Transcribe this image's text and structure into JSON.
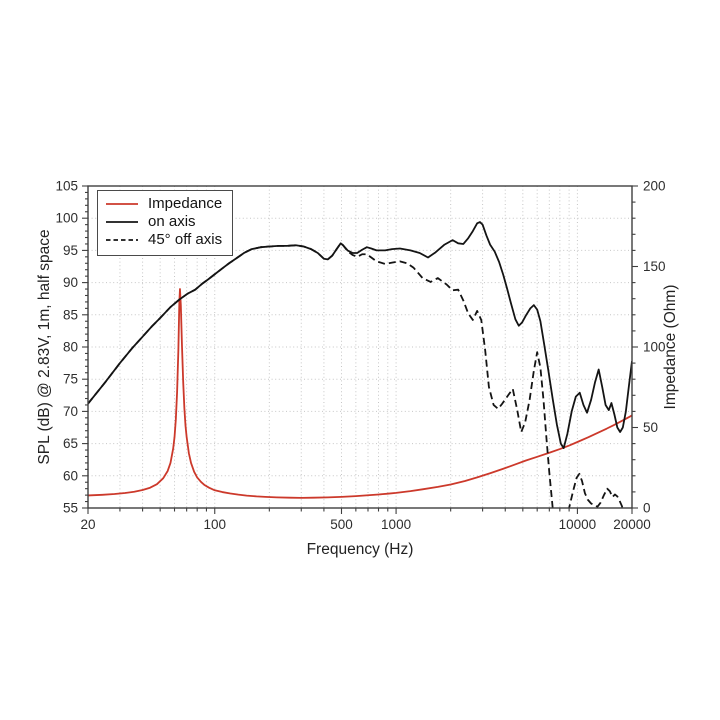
{
  "chart_data": {
    "type": "line",
    "title": "",
    "xlabel": "Frequency (Hz)",
    "ylabel_left": "SPL (dB) @ 2.83V, 1m, half space",
    "ylabel_right": "Impedance (Ohm)",
    "x_scale": "log",
    "x_range": [
      20,
      20000
    ],
    "y_left_range": [
      55,
      105
    ],
    "y_right_range": [
      0,
      200
    ],
    "x_ticks_labeled": [
      20,
      100,
      500,
      1000,
      10000,
      20000
    ],
    "x_tick_label_texts": [
      "20",
      "100",
      "500",
      "1000",
      "10000",
      "20000"
    ],
    "x_grid": [
      30,
      40,
      50,
      60,
      70,
      80,
      90,
      100,
      200,
      300,
      400,
      500,
      600,
      700,
      800,
      900,
      1000,
      2000,
      3000,
      4000,
      5000,
      6000,
      7000,
      8000,
      9000,
      10000
    ],
    "y_left_ticks_major": [
      55,
      60,
      65,
      70,
      75,
      80,
      85,
      90,
      95,
      100,
      105
    ],
    "y_left_grid": [
      60,
      65,
      70,
      75,
      80,
      85,
      90,
      95,
      100
    ],
    "y_right_ticks_major": [
      0,
      50,
      100,
      150,
      200
    ],
    "y_right_minor_step": 10,
    "y_left_minor_step": 1,
    "grid": "dotted",
    "grid_color": "#c6c6c6",
    "frame_color": "#3f3f3f",
    "text_color": "#2e2e2e",
    "legend_position": "upper-left",
    "legend": [
      {
        "label": "Impedance",
        "color": "#cc392b",
        "style": "solid"
      },
      {
        "label": "on axis",
        "color": "#141414",
        "style": "solid"
      },
      {
        "label": "45° off axis",
        "color": "#141414",
        "style": "dashed"
      }
    ],
    "series": [
      {
        "name": "Impedance",
        "axis": "right",
        "unit": "Ohm",
        "color": "#cc392b",
        "style": "solid",
        "data_name": "impedance-curve",
        "points": [
          [
            20,
            7.8
          ],
          [
            24,
            8.2
          ],
          [
            28,
            8.7
          ],
          [
            32,
            9.3
          ],
          [
            36,
            10.1
          ],
          [
            40,
            11.2
          ],
          [
            44,
            12.6
          ],
          [
            48,
            14.8
          ],
          [
            52,
            18.5
          ],
          [
            55,
            23
          ],
          [
            57,
            28
          ],
          [
            59,
            37
          ],
          [
            60,
            44
          ],
          [
            61,
            55
          ],
          [
            62,
            72
          ],
          [
            63,
            98
          ],
          [
            63.8,
            128
          ],
          [
            64.3,
            136
          ],
          [
            65,
            126
          ],
          [
            66,
            100
          ],
          [
            67,
            78
          ],
          [
            68,
            62
          ],
          [
            69,
            51
          ],
          [
            70,
            44
          ],
          [
            72,
            34
          ],
          [
            74,
            28
          ],
          [
            77,
            22.5
          ],
          [
            80,
            19
          ],
          [
            84,
            16.2
          ],
          [
            88,
            14.2
          ],
          [
            93,
            12.6
          ],
          [
            100,
            11.0
          ],
          [
            110,
            9.9
          ],
          [
            122,
            9.0
          ],
          [
            135,
            8.3
          ],
          [
            150,
            7.7
          ],
          [
            170,
            7.2
          ],
          [
            190,
            6.9
          ],
          [
            220,
            6.6
          ],
          [
            260,
            6.4
          ],
          [
            300,
            6.3
          ],
          [
            350,
            6.4
          ],
          [
            420,
            6.6
          ],
          [
            500,
            6.9
          ],
          [
            600,
            7.4
          ],
          [
            700,
            7.9
          ],
          [
            800,
            8.4
          ],
          [
            900,
            8.9
          ],
          [
            1000,
            9.4
          ],
          [
            1200,
            10.5
          ],
          [
            1400,
            11.6
          ],
          [
            1700,
            13.1
          ],
          [
            2000,
            14.6
          ],
          [
            2400,
            16.8
          ],
          [
            2800,
            19.0
          ],
          [
            3300,
            21.6
          ],
          [
            3900,
            24.4
          ],
          [
            4500,
            26.9
          ],
          [
            5200,
            29.5
          ],
          [
            6000,
            31.8
          ],
          [
            7000,
            34.3
          ],
          [
            8000,
            36.6
          ],
          [
            9000,
            38.8
          ],
          [
            10000,
            41.0
          ],
          [
            11500,
            44.0
          ],
          [
            13000,
            46.8
          ],
          [
            14500,
            49.3
          ],
          [
            16000,
            51.7
          ],
          [
            18000,
            54.7
          ],
          [
            20000,
            57.5
          ]
        ]
      },
      {
        "name": "45° off axis",
        "axis": "left",
        "unit": "dB",
        "color": "#141414",
        "style": "dashed",
        "data_name": "off-axis-curve",
        "points": [
          [
            20,
            71.2
          ],
          [
            25,
            74.6
          ],
          [
            30,
            77.5
          ],
          [
            35,
            79.8
          ],
          [
            40,
            81.6
          ],
          [
            45,
            83.2
          ],
          [
            50,
            84.5
          ],
          [
            57,
            86.2
          ],
          [
            64,
            87.4
          ],
          [
            71,
            88.3
          ],
          [
            78,
            88.9
          ],
          [
            85,
            89.8
          ],
          [
            92,
            90.5
          ],
          [
            100,
            91.3
          ],
          [
            110,
            92.2
          ],
          [
            120,
            93.0
          ],
          [
            132,
            93.8
          ],
          [
            145,
            94.6
          ],
          [
            160,
            95.2
          ],
          [
            180,
            95.5
          ],
          [
            200,
            95.6
          ],
          [
            225,
            95.7
          ],
          [
            250,
            95.7
          ],
          [
            280,
            95.8
          ],
          [
            310,
            95.6
          ],
          [
            340,
            95.2
          ],
          [
            370,
            94.6
          ],
          [
            400,
            93.7
          ],
          [
            420,
            93.6
          ],
          [
            445,
            94.2
          ],
          [
            470,
            95.2
          ],
          [
            495,
            96.1
          ],
          [
            510,
            95.8
          ],
          [
            540,
            94.9
          ],
          [
            575,
            94.3
          ],
          [
            610,
            94.0
          ],
          [
            650,
            94.4
          ],
          [
            690,
            94.4
          ],
          [
            730,
            93.9
          ],
          [
            780,
            93.3
          ],
          [
            870,
            92.9
          ],
          [
            950,
            93.1
          ],
          [
            1050,
            93.3
          ],
          [
            1150,
            93.0
          ],
          [
            1250,
            92.3
          ],
          [
            1400,
            90.7
          ],
          [
            1550,
            90.1
          ],
          [
            1700,
            90.7
          ],
          [
            1900,
            89.7
          ],
          [
            2050,
            88.8
          ],
          [
            2200,
            88.9
          ],
          [
            2350,
            87.2
          ],
          [
            2500,
            85.2
          ],
          [
            2650,
            84.2
          ],
          [
            2800,
            85.6
          ],
          [
            2950,
            84.2
          ],
          [
            3100,
            79.5
          ],
          [
            3250,
            73.8
          ],
          [
            3450,
            71.0
          ],
          [
            3650,
            70.4
          ],
          [
            3850,
            71.2
          ],
          [
            4100,
            72.3
          ],
          [
            4400,
            73.5
          ],
          [
            4650,
            70.3
          ],
          [
            4900,
            66.8
          ],
          [
            5150,
            68.3
          ],
          [
            5450,
            71.8
          ],
          [
            5750,
            76.3
          ],
          [
            6000,
            79.2
          ],
          [
            6250,
            76.8
          ],
          [
            6500,
            71.8
          ],
          [
            6750,
            65.8
          ],
          [
            7000,
            60.5
          ],
          [
            7250,
            56.0
          ],
          [
            7500,
            51.5
          ],
          [
            7900,
            46.0
          ],
          [
            8300,
            49.0
          ],
          [
            8700,
            53.2
          ],
          [
            9100,
            55.6
          ],
          [
            9500,
            57.8
          ],
          [
            9900,
            59.7
          ],
          [
            10250,
            60.3
          ],
          [
            10600,
            59.2
          ],
          [
            11000,
            57.3
          ],
          [
            11400,
            56.3
          ],
          [
            11900,
            55.7
          ],
          [
            12400,
            55.4
          ],
          [
            12900,
            55.2
          ],
          [
            13400,
            55.8
          ],
          [
            14000,
            57.0
          ],
          [
            14600,
            58.0
          ],
          [
            15100,
            57.6
          ],
          [
            15600,
            56.7
          ],
          [
            16100,
            57.1
          ],
          [
            16600,
            56.8
          ],
          [
            17100,
            56.1
          ],
          [
            17600,
            55.3
          ],
          [
            18000,
            54.2
          ],
          [
            18400,
            52.5
          ]
        ]
      },
      {
        "name": "on axis",
        "axis": "left",
        "unit": "dB",
        "color": "#141414",
        "style": "solid",
        "data_name": "on-axis-curve",
        "points": [
          [
            20,
            71.2
          ],
          [
            25,
            74.6
          ],
          [
            30,
            77.5
          ],
          [
            35,
            79.8
          ],
          [
            40,
            81.6
          ],
          [
            45,
            83.2
          ],
          [
            50,
            84.5
          ],
          [
            57,
            86.2
          ],
          [
            64,
            87.4
          ],
          [
            71,
            88.3
          ],
          [
            78,
            88.9
          ],
          [
            85,
            89.8
          ],
          [
            92,
            90.5
          ],
          [
            100,
            91.3
          ],
          [
            110,
            92.2
          ],
          [
            120,
            93.0
          ],
          [
            132,
            93.8
          ],
          [
            145,
            94.6
          ],
          [
            160,
            95.2
          ],
          [
            180,
            95.5
          ],
          [
            200,
            95.6
          ],
          [
            225,
            95.7
          ],
          [
            250,
            95.7
          ],
          [
            280,
            95.8
          ],
          [
            310,
            95.6
          ],
          [
            340,
            95.2
          ],
          [
            370,
            94.6
          ],
          [
            400,
            93.7
          ],
          [
            420,
            93.6
          ],
          [
            445,
            94.2
          ],
          [
            470,
            95.2
          ],
          [
            495,
            96.1
          ],
          [
            510,
            95.8
          ],
          [
            540,
            95.0
          ],
          [
            575,
            94.6
          ],
          [
            610,
            94.6
          ],
          [
            650,
            95.1
          ],
          [
            690,
            95.5
          ],
          [
            730,
            95.3
          ],
          [
            780,
            95.0
          ],
          [
            870,
            95.0
          ],
          [
            950,
            95.2
          ],
          [
            1050,
            95.3
          ],
          [
            1200,
            95.0
          ],
          [
            1350,
            94.6
          ],
          [
            1500,
            93.9
          ],
          [
            1650,
            94.7
          ],
          [
            1850,
            95.9
          ],
          [
            2050,
            96.6
          ],
          [
            2200,
            96.1
          ],
          [
            2350,
            96.0
          ],
          [
            2500,
            96.9
          ],
          [
            2650,
            98.0
          ],
          [
            2800,
            99.2
          ],
          [
            2900,
            99.4
          ],
          [
            3000,
            99.0
          ],
          [
            3150,
            97.3
          ],
          [
            3300,
            95.9
          ],
          [
            3500,
            94.8
          ],
          [
            3700,
            93.2
          ],
          [
            3900,
            91.2
          ],
          [
            4100,
            89.0
          ],
          [
            4300,
            86.8
          ],
          [
            4550,
            84.3
          ],
          [
            4750,
            83.3
          ],
          [
            4950,
            83.8
          ],
          [
            5200,
            84.9
          ],
          [
            5500,
            86.0
          ],
          [
            5750,
            86.5
          ],
          [
            6000,
            85.8
          ],
          [
            6250,
            84.0
          ],
          [
            6550,
            80.5
          ],
          [
            6900,
            76.5
          ],
          [
            7300,
            72.0
          ],
          [
            7700,
            68.0
          ],
          [
            8100,
            65.0
          ],
          [
            8400,
            64.3
          ],
          [
            8800,
            66.5
          ],
          [
            9300,
            70.0
          ],
          [
            9800,
            72.3
          ],
          [
            10300,
            72.9
          ],
          [
            10800,
            71.0
          ],
          [
            11300,
            69.8
          ],
          [
            11900,
            71.8
          ],
          [
            12500,
            74.5
          ],
          [
            13100,
            76.5
          ],
          [
            13700,
            73.8
          ],
          [
            14300,
            71.0
          ],
          [
            14900,
            70.2
          ],
          [
            15400,
            71.3
          ],
          [
            16000,
            69.5
          ],
          [
            16600,
            67.5
          ],
          [
            17200,
            66.8
          ],
          [
            17800,
            67.5
          ],
          [
            18500,
            70.0
          ],
          [
            19200,
            73.8
          ],
          [
            20000,
            77.8
          ]
        ]
      }
    ]
  }
}
